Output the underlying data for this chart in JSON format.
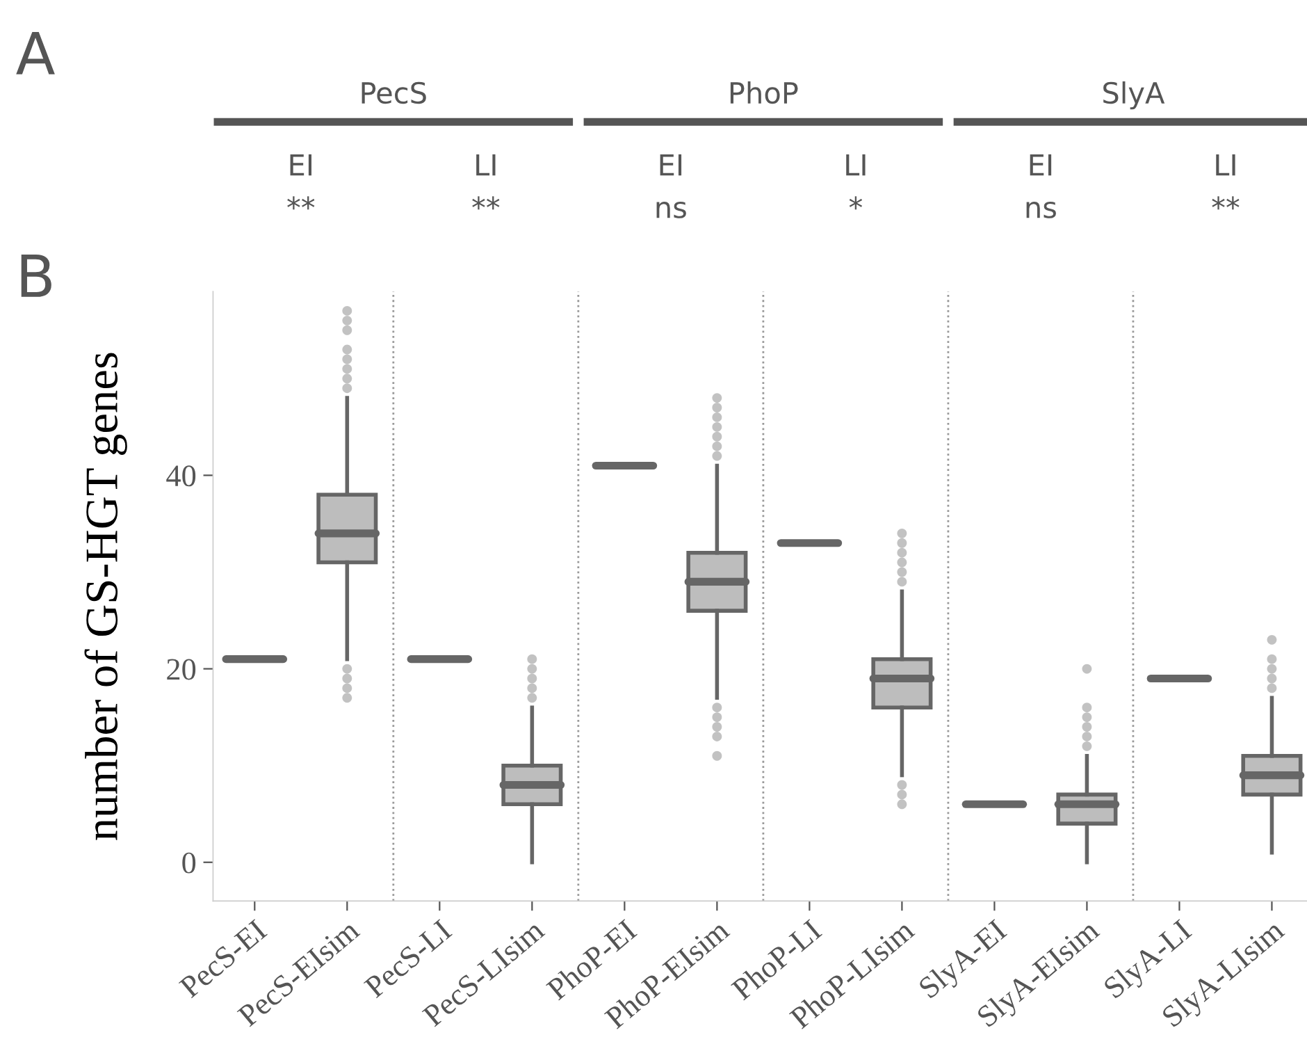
{
  "chart_data": {
    "type": "box",
    "ylabel": "number of GS-HGT genes",
    "categories": [
      "PecS-EI",
      "PecS-EIsim",
      "PecS-LI",
      "PecS-LIsim",
      "PhoP-EI",
      "PhoP-EIsim",
      "PhoP-LI",
      "PhoP-LIsim",
      "SlyA-EI",
      "SlyA-EIsim",
      "SlyA-LI",
      "SlyA-LIsim"
    ],
    "boxes": [
      {
        "low": 21,
        "q1": 21,
        "median": 21,
        "q3": 21,
        "high": 21
      },
      {
        "low": 21,
        "q1": 31,
        "median": 34,
        "q3": 38,
        "high": 48,
        "outliers": [
          49,
          50,
          51,
          52,
          53,
          55,
          56,
          57,
          20,
          19,
          18,
          17
        ]
      },
      {
        "low": 21,
        "q1": 21,
        "median": 21,
        "q3": 21,
        "high": 21
      },
      {
        "low": 0,
        "q1": 6,
        "median": 8,
        "q3": 10,
        "high": 16,
        "outliers": [
          17,
          18,
          19,
          20,
          21
        ]
      },
      {
        "low": 41,
        "q1": 41,
        "median": 41,
        "q3": 41,
        "high": 41
      },
      {
        "low": 17,
        "q1": 26,
        "median": 29,
        "q3": 32,
        "high": 41,
        "outliers": [
          42,
          43,
          44,
          45,
          46,
          47,
          48,
          16,
          15,
          14,
          13,
          11
        ]
      },
      {
        "low": 33,
        "q1": 33,
        "median": 33,
        "q3": 33,
        "high": 33
      },
      {
        "low": 9,
        "q1": 16,
        "median": 19,
        "q3": 21,
        "high": 28,
        "outliers": [
          29,
          30,
          31,
          32,
          33,
          34,
          8,
          7,
          6
        ]
      },
      {
        "low": 6,
        "q1": 6,
        "median": 6,
        "q3": 6,
        "high": 6
      },
      {
        "low": 0,
        "q1": 4,
        "median": 6,
        "q3": 7,
        "high": 11,
        "outliers": [
          12,
          13,
          14,
          15,
          16,
          20
        ]
      },
      {
        "low": 19,
        "q1": 19,
        "median": 19,
        "q3": 19,
        "high": 19
      },
      {
        "low": 1,
        "q1": 7,
        "median": 9,
        "q3": 11,
        "high": 17,
        "outliers": [
          18,
          19,
          20,
          21,
          23
        ]
      }
    ],
    "colors": [
      "#666666",
      "#bdbdbd",
      "#666666",
      "#bdbdbd",
      "#666666",
      "#bdbdbd",
      "#666666",
      "#bdbdbd",
      "#666666",
      "#bdbdbd",
      "#666666",
      "#bdbdbd"
    ],
    "ylim": [
      -4,
      59
    ],
    "yticks": [
      0,
      20,
      40
    ],
    "grid": false,
    "annotations": [
      "A",
      "B",
      "PecS",
      "PhoP",
      "SlyA",
      "EI",
      "LI",
      "EI",
      "LI",
      "EI",
      "LI",
      "**",
      "**",
      "ns",
      "*",
      "ns",
      "**"
    ]
  }
}
